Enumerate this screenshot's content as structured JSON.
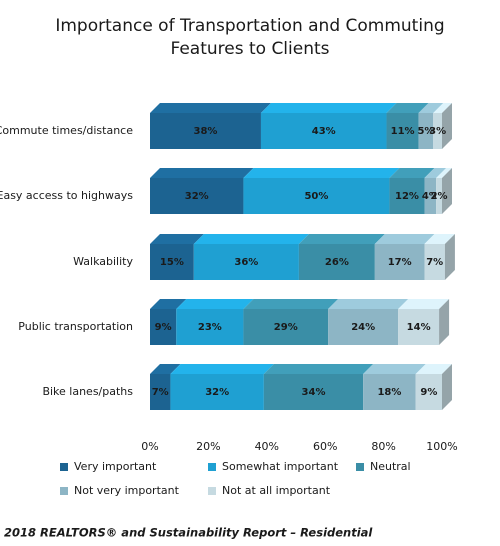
{
  "chart_data": {
    "type": "stacked-bar-3d",
    "title": [
      "Importance of Transportation and Commuting",
      "Features to Clients"
    ],
    "categories": [
      "Commute times/distance",
      "Easy access to highways",
      "Walkability",
      "Public transportation",
      "Bike lanes/paths"
    ],
    "series": [
      {
        "name": "Very important",
        "color": "#1c6391",
        "values": [
          38,
          32,
          15,
          9,
          7
        ],
        "value_labels": [
          "38%",
          "32%",
          "15%",
          "9%",
          "7%"
        ]
      },
      {
        "name": "Somewhat important",
        "color": "#1fa0d2",
        "values": [
          43,
          50,
          36,
          23,
          32
        ],
        "value_labels": [
          "43%",
          "50%",
          "36%",
          "23%",
          "32%"
        ]
      },
      {
        "name": "Neutral",
        "color": "#3a8ea6",
        "values": [
          11,
          12,
          26,
          29,
          34
        ],
        "value_labels": [
          "11%",
          "12%",
          "26%",
          "29%",
          "34%"
        ]
      },
      {
        "name": "Not very important",
        "color": "#8db5c5",
        "values": [
          5,
          4,
          17,
          24,
          18
        ],
        "value_labels": [
          "5%",
          "4%",
          "17%",
          "24%",
          "18%"
        ]
      },
      {
        "name": "Not at all important",
        "color": "#c6dae1",
        "values": [
          3,
          2,
          7,
          14,
          9
        ],
        "value_labels": [
          "3%",
          "2%",
          "7%",
          "14%",
          "9%"
        ]
      }
    ],
    "xlim": [
      0,
      100
    ],
    "xticks": [
      {
        "value": 0,
        "label": "0%"
      },
      {
        "value": 20,
        "label": "20%"
      },
      {
        "value": 40,
        "label": "40%"
      },
      {
        "value": 60,
        "label": "60%"
      },
      {
        "value": 80,
        "label": "80%"
      },
      {
        "value": 100,
        "label": "100%"
      }
    ],
    "source": "2018 REALTORS® and Sustainability Report – Residential"
  }
}
